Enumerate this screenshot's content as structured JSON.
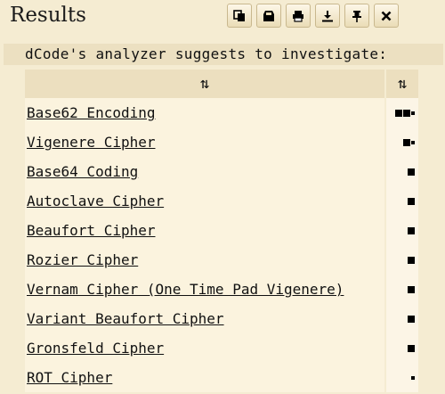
{
  "header": {
    "title": "Results",
    "toolbar": [
      {
        "name": "copy-icon"
      },
      {
        "name": "cut-icon"
      },
      {
        "name": "print-icon"
      },
      {
        "name": "download-icon"
      },
      {
        "name": "pin-icon"
      },
      {
        "name": "close-icon"
      }
    ]
  },
  "suggest_text": "dCode's analyzer suggests to investigate:",
  "table": {
    "sort_glyph": "⇅",
    "rows": [
      {
        "label": "Base62 Encoding",
        "score": "■■▪"
      },
      {
        "label": "Vigenere Cipher",
        "score": "■▪"
      },
      {
        "label": "Base64 Coding",
        "score": "■"
      },
      {
        "label": "Autoclave Cipher",
        "score": "■"
      },
      {
        "label": "Beaufort Cipher",
        "score": "■"
      },
      {
        "label": "Rozier Cipher",
        "score": "■"
      },
      {
        "label": "Vernam Cipher (One Time Pad Vigenere)",
        "score": "■"
      },
      {
        "label": "Variant Beaufort Cipher",
        "score": "■"
      },
      {
        "label": "Gronsfeld Cipher",
        "score": "■"
      },
      {
        "label": "ROT Cipher",
        "score": "▪"
      }
    ]
  }
}
